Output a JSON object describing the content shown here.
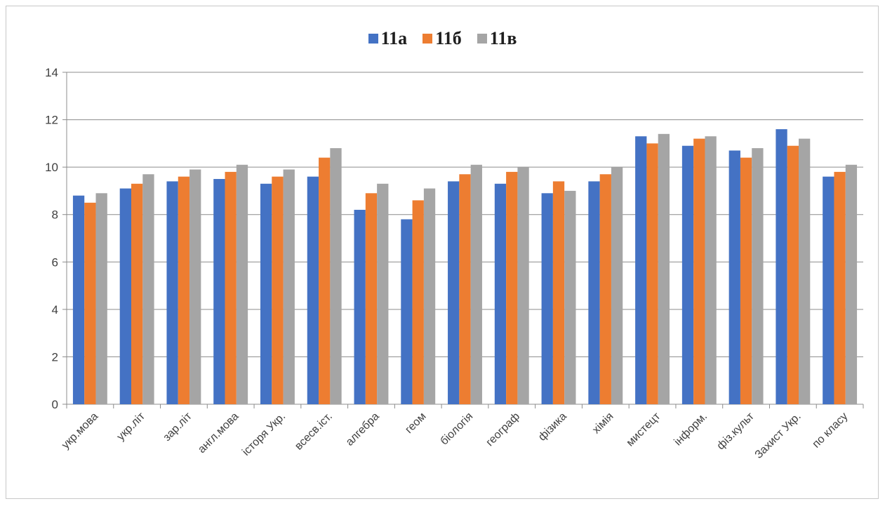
{
  "chart_data": {
    "type": "bar",
    "categories": [
      "укр.мова",
      "укр.літ",
      "зар.літ",
      "англ.мова",
      "історя Укр.",
      "всесв.іст.",
      "алгебра",
      "геом",
      "біологія",
      "географ",
      "фізика",
      "хімія",
      "мистецт",
      "інформ.",
      "фіз.культ",
      "Захист Укр.",
      "по класу"
    ],
    "series": [
      {
        "name": "11а",
        "color": "#4472C4",
        "values": [
          8.8,
          9.1,
          9.4,
          9.5,
          9.3,
          9.6,
          8.2,
          7.8,
          9.4,
          9.3,
          8.9,
          9.4,
          11.3,
          10.9,
          10.7,
          11.6,
          9.6
        ]
      },
      {
        "name": "11б",
        "color": "#ED7D31",
        "values": [
          8.5,
          9.3,
          9.6,
          9.8,
          9.6,
          10.4,
          8.9,
          8.6,
          9.7,
          9.8,
          9.4,
          9.7,
          11.0,
          11.2,
          10.4,
          10.9,
          9.8
        ]
      },
      {
        "name": "11в",
        "color": "#A5A5A5",
        "values": [
          8.9,
          9.7,
          9.9,
          10.1,
          9.9,
          10.8,
          9.3,
          9.1,
          10.1,
          10.0,
          9.0,
          10.0,
          11.4,
          11.3,
          10.8,
          11.2,
          10.1
        ]
      }
    ],
    "title": "",
    "xlabel": "",
    "ylabel": "",
    "ylim": [
      0,
      14
    ],
    "yticks": [
      "0",
      "2",
      "4",
      "6",
      "8",
      "10",
      "12",
      "14"
    ],
    "grid": true,
    "legend_position": "top-center"
  }
}
